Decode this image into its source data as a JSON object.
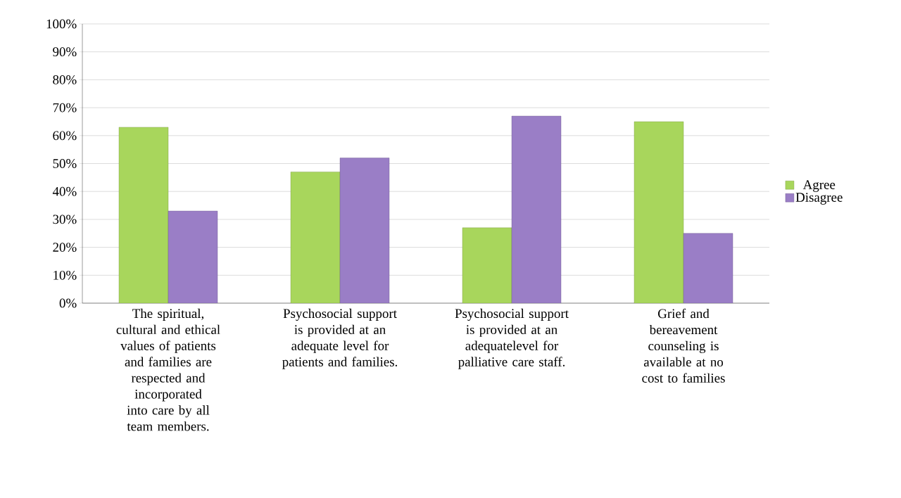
{
  "chart_data": {
    "type": "bar",
    "categories": [
      "The spiritual, cultural and ethical values of patients and families are respected and incorporated into care by all team members.",
      "Psychosocial support is provided at an adequate level for patients and families.",
      "Psychosocial support is provided at an adequatelevel for palliative care staff.",
      "Grief and bereavement counseling is available at no cost to families"
    ],
    "series": [
      {
        "name": "Agree",
        "color": "#a8d65c",
        "values": [
          63,
          47,
          27,
          65
        ]
      },
      {
        "name": "Disagree",
        "color": "#9a7ec6",
        "values": [
          33,
          52,
          67,
          25
        ]
      }
    ],
    "ylim": [
      0,
      100
    ],
    "yticks": [
      {
        "value": 0,
        "label": "0%"
      },
      {
        "value": 10,
        "label": "10%"
      },
      {
        "value": 20,
        "label": "20%"
      },
      {
        "value": 30,
        "label": "30%"
      },
      {
        "value": 40,
        "label": "40%"
      },
      {
        "value": 50,
        "label": "50%"
      },
      {
        "value": 60,
        "label": "60%"
      },
      {
        "value": 70,
        "label": "70%"
      },
      {
        "value": 80,
        "label": "80%"
      },
      {
        "value": 90,
        "label": "90%"
      },
      {
        "value": 100,
        "label": "100%"
      }
    ],
    "grid": "y",
    "legend": "right"
  }
}
